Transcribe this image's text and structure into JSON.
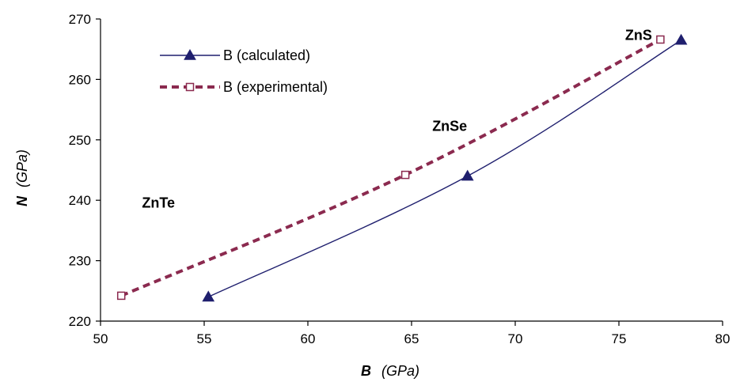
{
  "chart_data": {
    "type": "line",
    "xlabel_main": "B",
    "xlabel_unit": "(GPa)",
    "ylabel_main": "N",
    "ylabel_unit": "(GPa)",
    "xlim": [
      50,
      80
    ],
    "ylim": [
      220,
      270
    ],
    "xticks": [
      50,
      55,
      60,
      65,
      70,
      75,
      80
    ],
    "yticks": [
      220,
      230,
      240,
      250,
      260,
      270
    ],
    "grid": false,
    "legend_position": "top-left",
    "series": [
      {
        "name": "B (calculated)",
        "color": "#1f1f6e",
        "marker": "filled-triangle",
        "line_style": "solid",
        "x": [
          55.2,
          67.7,
          78.0
        ],
        "y": [
          224.0,
          244.0,
          266.5
        ]
      },
      {
        "name": "B (experimental)",
        "color": "#8b2a4f",
        "marker": "open-square",
        "line_style": "dashed",
        "x": [
          51.0,
          64.7,
          77.0
        ],
        "y": [
          224.2,
          244.2,
          266.6
        ]
      }
    ],
    "annotations": [
      {
        "text": "ZnS",
        "x": 75.3,
        "y": 266.5
      },
      {
        "text": "ZnSe",
        "x": 66.0,
        "y": 251.5
      },
      {
        "text": "ZnTe",
        "x": 52.0,
        "y": 238.8
      }
    ]
  }
}
